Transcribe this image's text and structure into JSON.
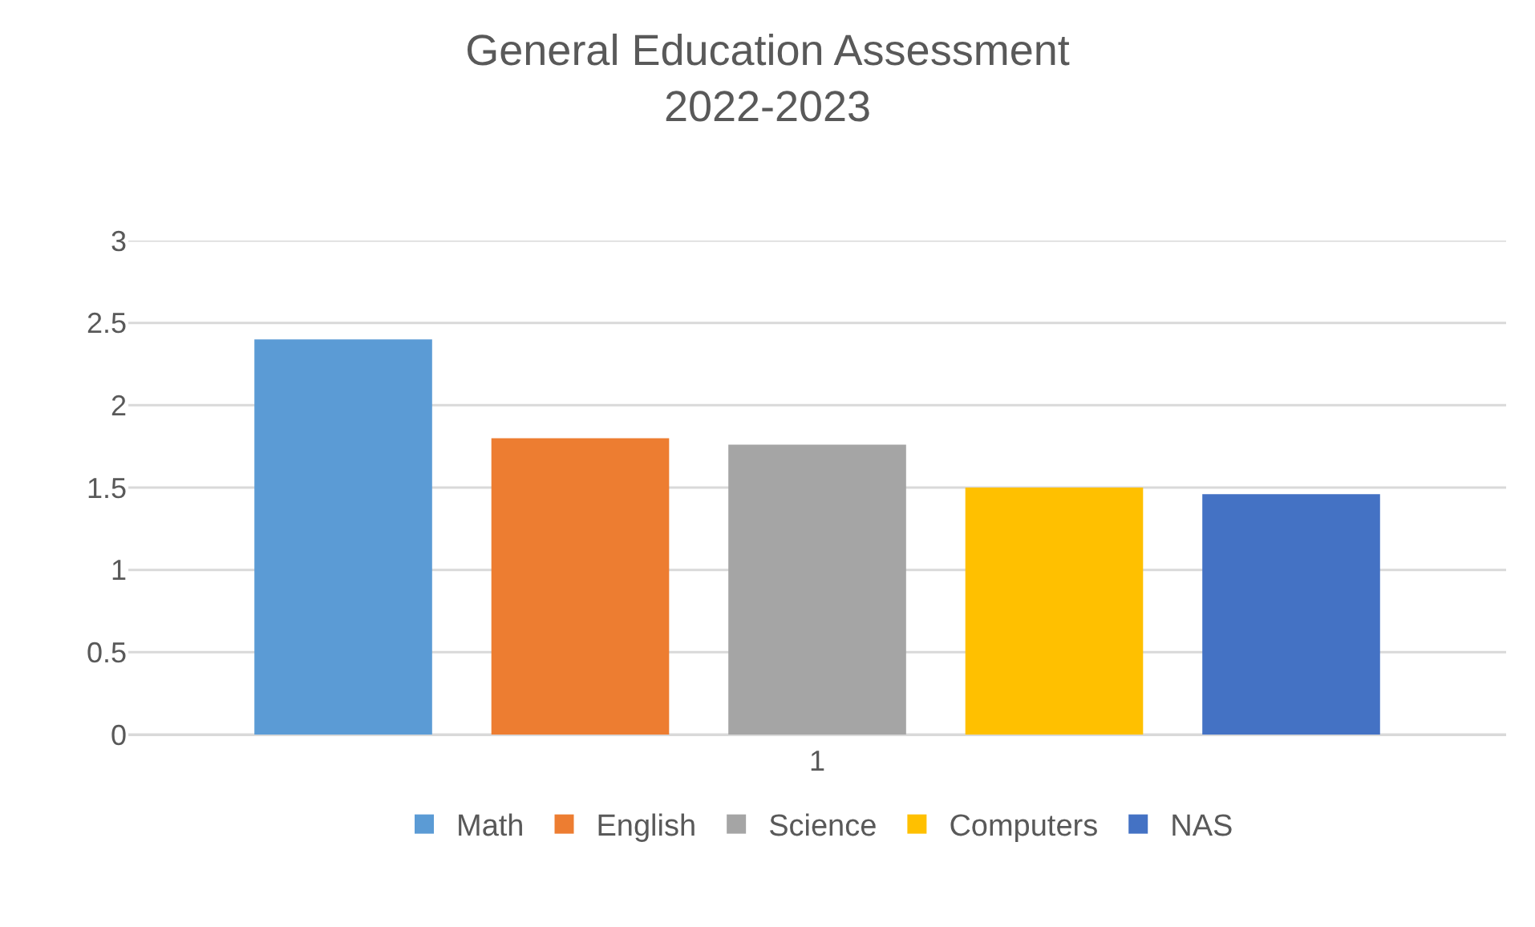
{
  "chart_data": {
    "type": "bar",
    "title": "General Education Assessment\n2022-2023",
    "categories": [
      "1"
    ],
    "series": [
      {
        "name": "Math",
        "color": "#5b9bd5",
        "values": [
          2.4
        ]
      },
      {
        "name": "English",
        "color": "#ed7d31",
        "values": [
          1.8
        ]
      },
      {
        "name": "Science",
        "color": "#a5a5a5",
        "values": [
          1.76
        ]
      },
      {
        "name": "Computers",
        "color": "#ffc000",
        "values": [
          1.5
        ]
      },
      {
        "name": "NAS",
        "color": "#4472c4",
        "values": [
          1.46
        ]
      }
    ],
    "ylim": [
      0,
      3
    ],
    "yticks": [
      0,
      0.5,
      1,
      1.5,
      2,
      2.5,
      3
    ],
    "grid": "y",
    "legend": "bottom"
  }
}
